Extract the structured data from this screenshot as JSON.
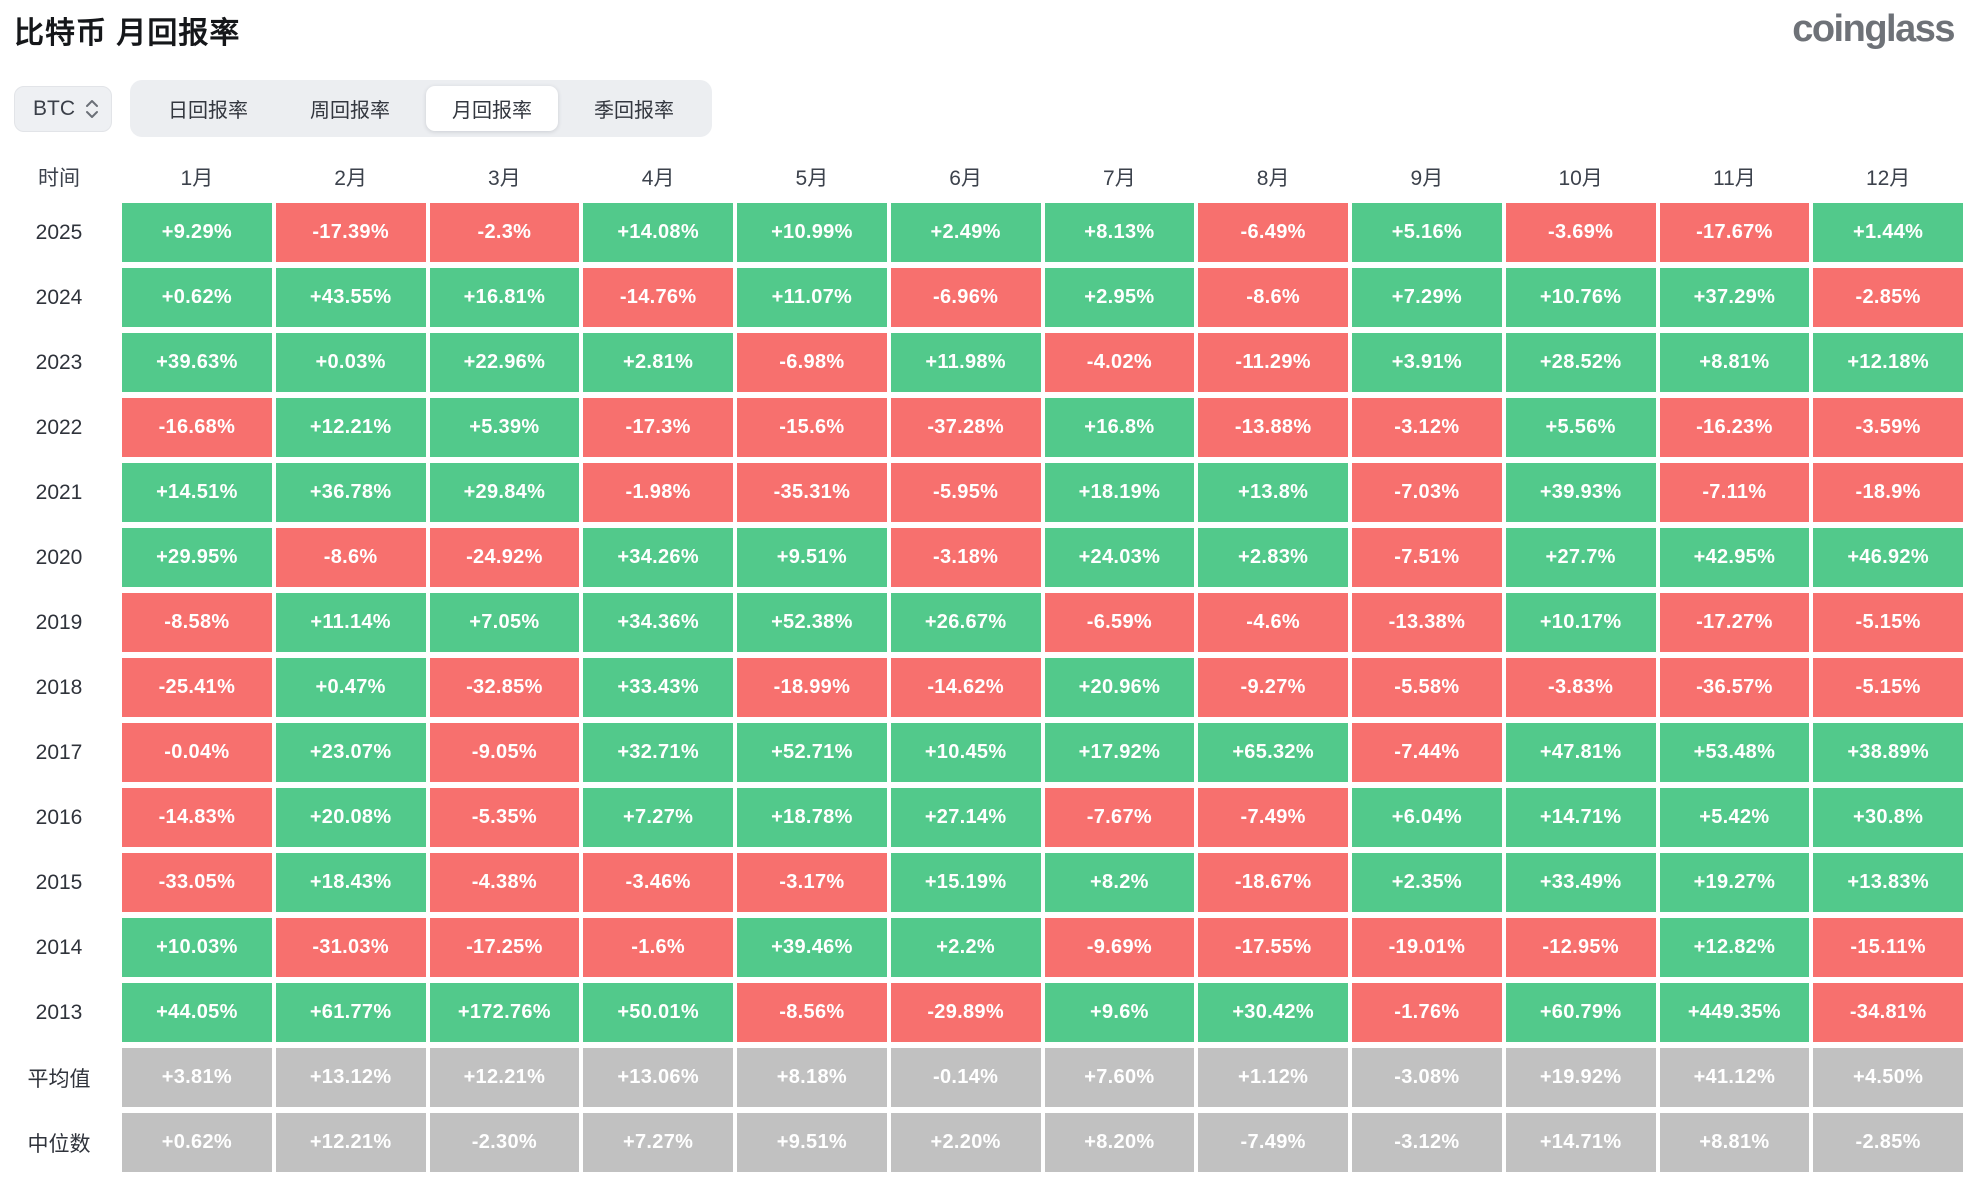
{
  "page": {
    "title": "比特币 月回报率",
    "brand": "coinglass"
  },
  "controls": {
    "coin_selector": {
      "value": "BTC"
    },
    "tabs": [
      {
        "name": "daily",
        "label": "日回报率",
        "active": false
      },
      {
        "name": "weekly",
        "label": "周回报率",
        "active": false
      },
      {
        "name": "monthly",
        "label": "月回报率",
        "active": true
      },
      {
        "name": "quarterly",
        "label": "季回报率",
        "active": false
      }
    ]
  },
  "colors": {
    "positive": "#52C98B",
    "negative": "#F7706E",
    "summary": "#C1C1C1"
  },
  "table": {
    "time_header": "时间",
    "month_headers": [
      "1月",
      "2月",
      "3月",
      "4月",
      "5月",
      "6月",
      "7月",
      "8月",
      "9月",
      "10月",
      "11月",
      "12月"
    ],
    "rows": [
      {
        "label": "2025",
        "type": "year",
        "values": [
          "+9.29%",
          "-17.39%",
          "-2.3%",
          "+14.08%",
          "+10.99%",
          "+2.49%",
          "+8.13%",
          "-6.49%",
          "+5.16%",
          "-3.69%",
          "-17.67%",
          "+1.44%"
        ]
      },
      {
        "label": "2024",
        "type": "year",
        "values": [
          "+0.62%",
          "+43.55%",
          "+16.81%",
          "-14.76%",
          "+11.07%",
          "-6.96%",
          "+2.95%",
          "-8.6%",
          "+7.29%",
          "+10.76%",
          "+37.29%",
          "-2.85%"
        ]
      },
      {
        "label": "2023",
        "type": "year",
        "values": [
          "+39.63%",
          "+0.03%",
          "+22.96%",
          "+2.81%",
          "-6.98%",
          "+11.98%",
          "-4.02%",
          "-11.29%",
          "+3.91%",
          "+28.52%",
          "+8.81%",
          "+12.18%"
        ]
      },
      {
        "label": "2022",
        "type": "year",
        "values": [
          "-16.68%",
          "+12.21%",
          "+5.39%",
          "-17.3%",
          "-15.6%",
          "-37.28%",
          "+16.8%",
          "-13.88%",
          "-3.12%",
          "+5.56%",
          "-16.23%",
          "-3.59%"
        ]
      },
      {
        "label": "2021",
        "type": "year",
        "values": [
          "+14.51%",
          "+36.78%",
          "+29.84%",
          "-1.98%",
          "-35.31%",
          "-5.95%",
          "+18.19%",
          "+13.8%",
          "-7.03%",
          "+39.93%",
          "-7.11%",
          "-18.9%"
        ]
      },
      {
        "label": "2020",
        "type": "year",
        "values": [
          "+29.95%",
          "-8.6%",
          "-24.92%",
          "+34.26%",
          "+9.51%",
          "-3.18%",
          "+24.03%",
          "+2.83%",
          "-7.51%",
          "+27.7%",
          "+42.95%",
          "+46.92%"
        ]
      },
      {
        "label": "2019",
        "type": "year",
        "values": [
          "-8.58%",
          "+11.14%",
          "+7.05%",
          "+34.36%",
          "+52.38%",
          "+26.67%",
          "-6.59%",
          "-4.6%",
          "-13.38%",
          "+10.17%",
          "-17.27%",
          "-5.15%"
        ]
      },
      {
        "label": "2018",
        "type": "year",
        "values": [
          "-25.41%",
          "+0.47%",
          "-32.85%",
          "+33.43%",
          "-18.99%",
          "-14.62%",
          "+20.96%",
          "-9.27%",
          "-5.58%",
          "-3.83%",
          "-36.57%",
          "-5.15%"
        ]
      },
      {
        "label": "2017",
        "type": "year",
        "values": [
          "-0.04%",
          "+23.07%",
          "-9.05%",
          "+32.71%",
          "+52.71%",
          "+10.45%",
          "+17.92%",
          "+65.32%",
          "-7.44%",
          "+47.81%",
          "+53.48%",
          "+38.89%"
        ]
      },
      {
        "label": "2016",
        "type": "year",
        "values": [
          "-14.83%",
          "+20.08%",
          "-5.35%",
          "+7.27%",
          "+18.78%",
          "+27.14%",
          "-7.67%",
          "-7.49%",
          "+6.04%",
          "+14.71%",
          "+5.42%",
          "+30.8%"
        ]
      },
      {
        "label": "2015",
        "type": "year",
        "values": [
          "-33.05%",
          "+18.43%",
          "-4.38%",
          "-3.46%",
          "-3.17%",
          "+15.19%",
          "+8.2%",
          "-18.67%",
          "+2.35%",
          "+33.49%",
          "+19.27%",
          "+13.83%"
        ]
      },
      {
        "label": "2014",
        "type": "year",
        "values": [
          "+10.03%",
          "-31.03%",
          "-17.25%",
          "-1.6%",
          "+39.46%",
          "+2.2%",
          "-9.69%",
          "-17.55%",
          "-19.01%",
          "-12.95%",
          "+12.82%",
          "-15.11%"
        ]
      },
      {
        "label": "2013",
        "type": "year",
        "values": [
          "+44.05%",
          "+61.77%",
          "+172.76%",
          "+50.01%",
          "-8.56%",
          "-29.89%",
          "+9.6%",
          "+30.42%",
          "-1.76%",
          "+60.79%",
          "+449.35%",
          "-34.81%"
        ]
      },
      {
        "label": "平均值",
        "type": "summary",
        "values": [
          "+3.81%",
          "+13.12%",
          "+12.21%",
          "+13.06%",
          "+8.18%",
          "-0.14%",
          "+7.60%",
          "+1.12%",
          "-3.08%",
          "+19.92%",
          "+41.12%",
          "+4.50%"
        ]
      },
      {
        "label": "中位数",
        "type": "summary",
        "values": [
          "+0.62%",
          "+12.21%",
          "-2.30%",
          "+7.27%",
          "+9.51%",
          "+2.20%",
          "+8.20%",
          "-7.49%",
          "-3.12%",
          "+14.71%",
          "+8.81%",
          "-2.85%"
        ]
      }
    ]
  }
}
